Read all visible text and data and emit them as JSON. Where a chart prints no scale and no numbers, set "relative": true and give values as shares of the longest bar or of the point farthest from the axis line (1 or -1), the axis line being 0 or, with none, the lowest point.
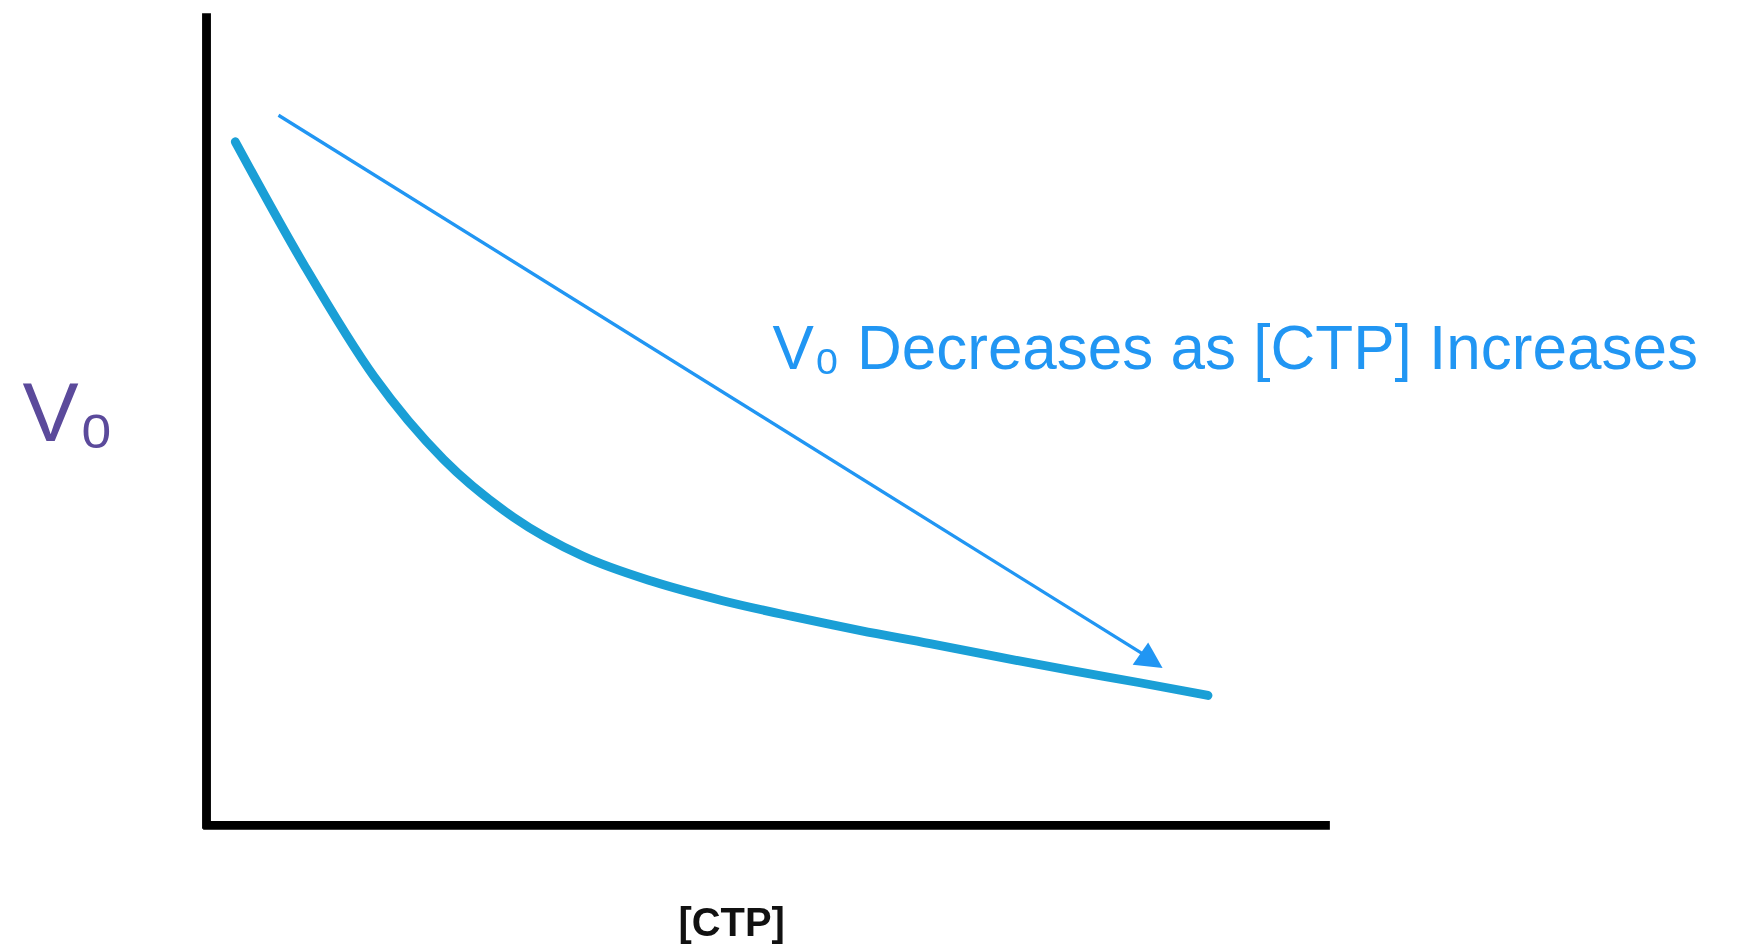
{
  "chart_data": {
    "type": "line",
    "relative": true,
    "xlabel": "[CTP]",
    "ylabel": "V₀",
    "annotations": [
      "V₀ Decreases as [CTP] Increases"
    ],
    "categories": [
      null,
      null,
      null,
      null,
      null,
      null,
      null,
      null,
      null,
      null,
      null,
      null,
      null,
      null,
      null
    ],
    "series": [
      {
        "color": "#1a9fd6",
        "values": [
          1,
          0.818,
          0.656,
          0.535,
          0.451,
          0.394,
          0.357,
          0.329,
          0.306,
          0.285,
          0.266,
          0.246,
          0.227,
          0.209,
          0.19
        ]
      }
    ]
  }
}
